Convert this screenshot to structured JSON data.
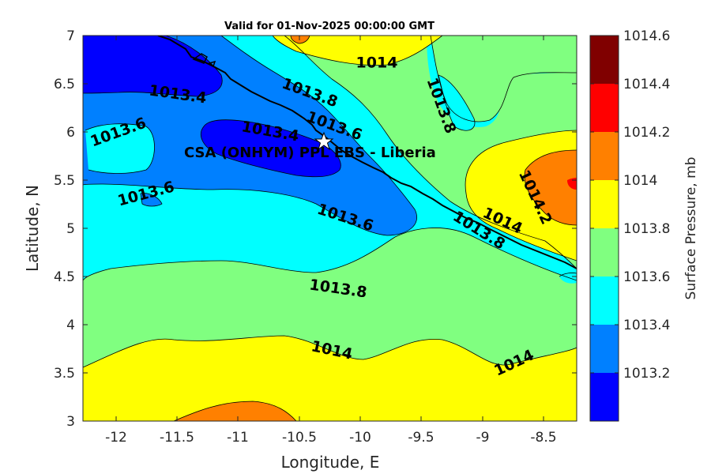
{
  "title": "Valid for 01-Nov-2025 00:00:00 GMT",
  "xlabel": "Longitude, E",
  "ylabel": "Latitude, N",
  "x_ticks": [
    "-12",
    "-11.5",
    "-11",
    "-10.5",
    "-10",
    "-9.5",
    "-9",
    "-8.5"
  ],
  "y_ticks": [
    "7",
    "6.5",
    "6",
    "5.5",
    "5",
    "4.5",
    "4",
    "3.5",
    "3"
  ],
  "site_label": "CSA (ONHYM) PPL EBS  - Liberia",
  "colorbar": {
    "title": "Surface Pressure, mb",
    "ticks": [
      "1014.6",
      "1014.4",
      "1014.2",
      "1014",
      "1013.8",
      "1013.6",
      "1013.4",
      "1013.2"
    ],
    "colors": [
      "#0000ff",
      "#0080ff",
      "#00ffff",
      "#80ff80",
      "#ffff00",
      "#ff8000",
      "#ff0000",
      "#800000"
    ]
  },
  "contour_labels": [
    {
      "text": "1013.4"
    },
    {
      "text": "1013.6"
    },
    {
      "text": "1013.4"
    },
    {
      "text": "1013.8"
    },
    {
      "text": "1014"
    },
    {
      "text": "1013.8"
    },
    {
      "text": "1013.6"
    },
    {
      "text": "1013.6"
    },
    {
      "text": "1013.6"
    },
    {
      "text": "1014.2"
    },
    {
      "text": "1014"
    },
    {
      "text": "1013.8"
    },
    {
      "text": "1013.8"
    },
    {
      "text": "1014"
    },
    {
      "text": "1014"
    }
  ]
}
